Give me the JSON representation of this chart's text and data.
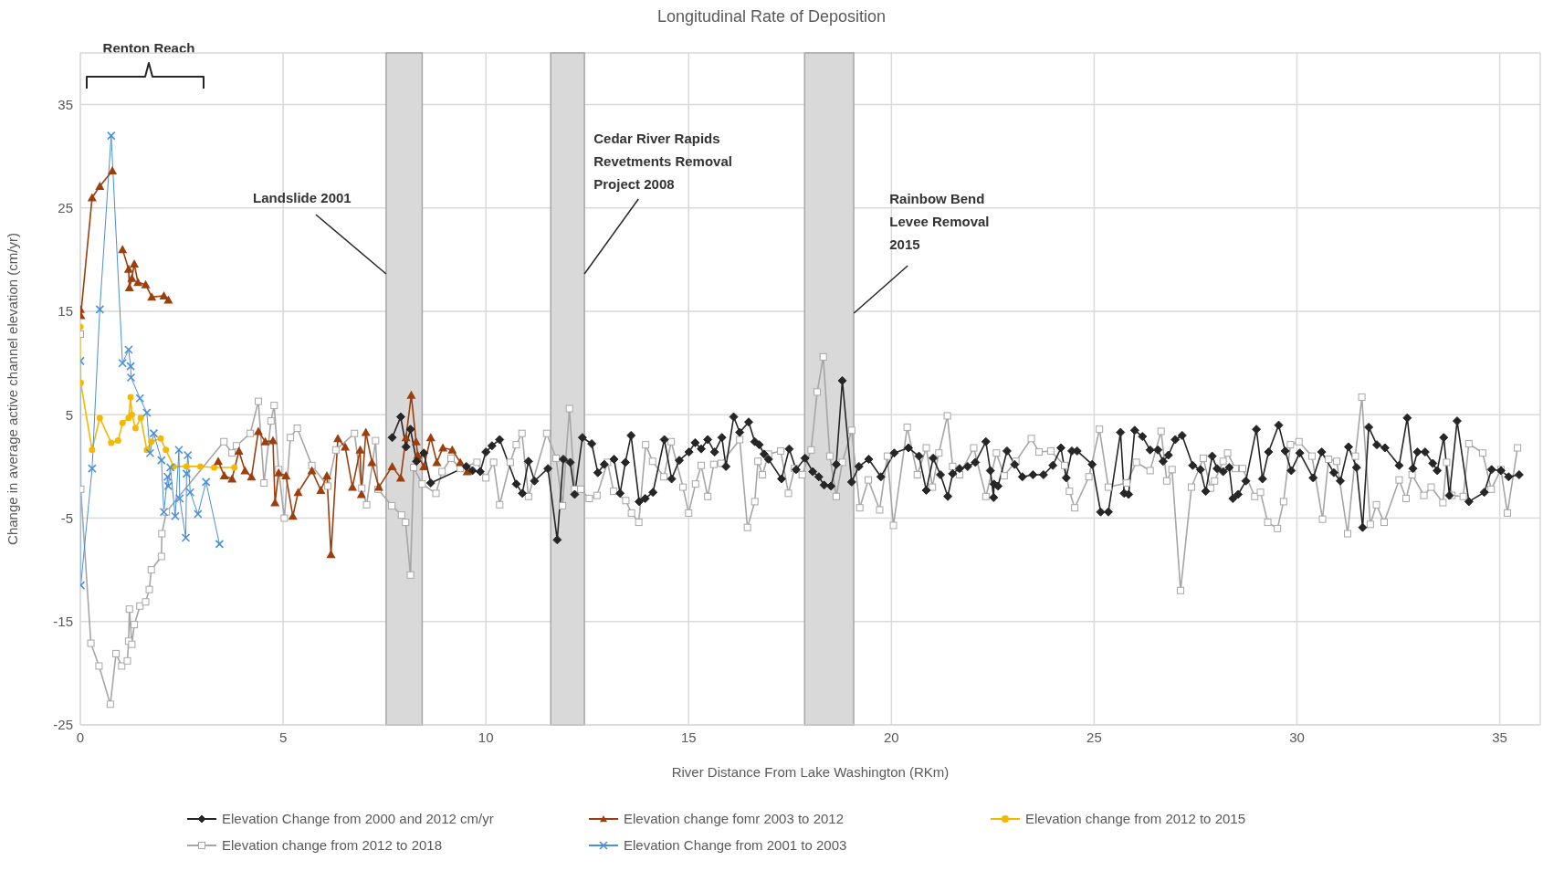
{
  "chart_data": {
    "type": "line",
    "title": "Longitudinal Rate of Deposition",
    "xlabel": "River Distance From Lake Washington (RKm)",
    "ylabel": "Change in average active channel elevation (cm/yr)",
    "xlim": [
      0,
      36
    ],
    "xticks": [
      0,
      5,
      10,
      15,
      20,
      25,
      30,
      35
    ],
    "ylim": [
      -25,
      40
    ],
    "yticks": [
      -25,
      -15,
      -5,
      5,
      15,
      25,
      35
    ],
    "grid": true,
    "legend": "bottom",
    "bands": [
      {
        "axis": "x",
        "from": 7.54,
        "to": 8.43,
        "label": "Landslide 2001",
        "color": "#d9d9d9"
      },
      {
        "axis": "x",
        "from": 11.6,
        "to": 12.43,
        "label": "Cedar River Rapids Revetments Removal Project 2008",
        "color": "#d9d9d9"
      },
      {
        "axis": "x",
        "from": 17.86,
        "to": 19.07,
        "label": "Rainbow Bend Levee Removal 2015",
        "color": "#d9d9d9"
      }
    ],
    "annotations": [
      "Renton Reach"
    ],
    "series": [
      {
        "name": "Elevation Change from 2000 and 2012 cm/yr",
        "color": "#262626",
        "marker": "diamond",
        "x": [
          7.69,
          7.9,
          8.03,
          8.14,
          8.29,
          8.47,
          8.64,
          9.52,
          9.67,
          9.86,
          10.0,
          10.15,
          10.34,
          10.75,
          10.9,
          11.05,
          11.2,
          11.53,
          11.76,
          11.91,
          12.08,
          12.19,
          12.38,
          12.61,
          12.76,
          12.92,
          13.16,
          13.31,
          13.44,
          13.58,
          13.78,
          13.93,
          14.12,
          14.4,
          14.58,
          14.77,
          15.01,
          15.16,
          15.31,
          15.47,
          15.64,
          15.82,
          15.92,
          16.11,
          16.26,
          16.48,
          16.63,
          16.74,
          16.86,
          16.97,
          17.29,
          17.48,
          17.65,
          17.87,
          18.06,
          18.21,
          18.34,
          18.51,
          18.64,
          18.79,
          19.02,
          19.2,
          19.44,
          19.74,
          20.07,
          20.42,
          20.68,
          20.86,
          21.03,
          21.21,
          21.39,
          21.51,
          21.68,
          21.88,
          22.07,
          22.33,
          22.44,
          22.52,
          22.53,
          22.63,
          22.85,
          23.04,
          23.23,
          23.49,
          23.75,
          23.98,
          24.18,
          24.31,
          24.45,
          24.58,
          24.95,
          25.16,
          25.35,
          25.65,
          25.74,
          25.85,
          26.0,
          26.19,
          26.38,
          26.57,
          26.7,
          26.83,
          27.0,
          27.17,
          27.43,
          27.62,
          27.75,
          27.91,
          28.03,
          28.18,
          28.33,
          28.42,
          28.55,
          28.74,
          29.0,
          29.15,
          29.3,
          29.55,
          29.71,
          29.86,
          30.07,
          30.4,
          30.61,
          30.91,
          31.07,
          31.27,
          31.47,
          31.62,
          31.77,
          31.97,
          32.17,
          32.52,
          32.72,
          32.86,
          32.97,
          33.16,
          33.35,
          33.46,
          33.62,
          33.76,
          33.95,
          34.24,
          34.62,
          34.8,
          35.03,
          35.22,
          35.48
        ],
        "values": [
          2.8,
          4.8,
          1.9,
          3.6,
          0.5,
          1.3,
          -1.6,
          0.0,
          -0.4,
          -0.5,
          1.4,
          2.0,
          2.6,
          -1.7,
          -2.6,
          0.5,
          -1.4,
          -0.2,
          -7.1,
          0.7,
          0.4,
          -2.7,
          2.8,
          2.2,
          -0.6,
          0.2,
          0.7,
          -2.6,
          0.4,
          3.0,
          -3.4,
          -3.1,
          -2.5,
          2.6,
          -1.2,
          0.6,
          1.4,
          2.3,
          1.7,
          2.6,
          1.4,
          2.8,
          0.0,
          4.8,
          3.3,
          4.3,
          2.4,
          2.1,
          1.2,
          0.7,
          -1.2,
          1.7,
          -0.3,
          0.8,
          -0.5,
          -1.0,
          -1.8,
          -1.9,
          0.2,
          8.3,
          -1.5,
          0.0,
          0.7,
          -1.0,
          1.3,
          1.8,
          1.0,
          -2.3,
          0.8,
          -0.8,
          -2.9,
          -0.7,
          -0.2,
          0.0,
          0.4,
          2.4,
          -0.4,
          -3.0,
          -1.7,
          -1.9,
          1.5,
          0.2,
          -1.0,
          -0.8,
          -0.8,
          0.1,
          1.8,
          -1.1,
          1.5,
          1.5,
          0.2,
          -4.4,
          -4.4,
          3.3,
          -2.6,
          -2.7,
          3.5,
          2.9,
          1.6,
          1.6,
          0.5,
          1.1,
          2.6,
          3.0,
          0.1,
          -0.3,
          -2.4,
          1.0,
          -0.2,
          -0.5,
          -0.1,
          -3.1,
          -2.7,
          -1.4,
          3.6,
          -1.2,
          1.4,
          4.0,
          1.5,
          -0.4,
          1.3,
          -1.1,
          1.4,
          -0.6,
          -1.4,
          1.9,
          -0.1,
          -5.9,
          3.8,
          2.1,
          1.8,
          0.1,
          4.7,
          -0.2,
          1.4,
          1.4,
          0.3,
          -0.4,
          2.8,
          -2.8,
          4.4,
          -3.4,
          -2.5,
          -0.3,
          -0.4,
          -1.0,
          -0.8
        ]
      },
      {
        "name": "Elevation change fomr 2003 to 2012",
        "color": "#9c3f0e",
        "marker": "triangle",
        "x": [
          0,
          0.01,
          0.29,
          0.48,
          0.79,
          0.9,
          1.04,
          1.19,
          1.21,
          1.27,
          1.33,
          1.42,
          1.61,
          1.76,
          2.06,
          2.17,
          2.8,
          3.4,
          3.55,
          3.74,
          3.91,
          4.06,
          4.22,
          4.39,
          4.56,
          4.75,
          4.8,
          4.89,
          5.07,
          5.24,
          5.37,
          5.71,
          5.93,
          6.08,
          6.18,
          6.35,
          6.53,
          6.71,
          6.9,
          6.93,
          7.04,
          7.19,
          7.36,
          7.69,
          7.9,
          8.03,
          8.16,
          8.28,
          8.32,
          8.47,
          8.64,
          8.79,
          8.94,
          9.17,
          9.37,
          9.54
        ],
        "values": [
          15.2,
          14.6,
          26.0,
          27.1,
          28.6,
          null,
          21.0,
          19.1,
          17.3,
          18.2,
          19.6,
          17.8,
          17.6,
          16.4,
          16.5,
          16.1,
          null,
          0.5,
          -0.9,
          -1.2,
          1.5,
          -0.4,
          -1.0,
          3.4,
          2.4,
          2.5,
          -3.5,
          -0.6,
          -0.9,
          -4.8,
          -2.5,
          -0.4,
          -2.3,
          -0.9,
          -8.5,
          2.7,
          1.9,
          -2.0,
          1.6,
          -2.7,
          3.3,
          0.4,
          -2.0,
          0.0,
          -1.1,
          2.8,
          6.9,
          2.4,
          1.1,
          0.0,
          2.8,
          0.4,
          1.8,
          1.6,
          0.4,
          -0.5
        ]
      },
      {
        "name": "Elevation change from 2012 to 2015",
        "color": "#f5b800",
        "marker": "circle",
        "x": [
          0,
          0.01,
          0.29,
          0.48,
          0.76,
          0.93,
          1.04,
          1.19,
          1.24,
          1.27,
          1.36,
          1.49,
          1.64,
          1.75,
          1.98,
          2.11,
          2.3,
          2.62,
          2.96,
          3.3,
          3.8
        ],
        "values": [
          13.5,
          8.1,
          1.6,
          4.7,
          2.3,
          2.5,
          4.2,
          4.7,
          6.7,
          5.0,
          3.7,
          4.7,
          1.6,
          2.4,
          2.7,
          1.6,
          0.0,
          0.0,
          0.0,
          -0.1,
          -0.1
        ]
      },
      {
        "name": "Elevation change from 2012 to 2018",
        "color": "#a6a6a6",
        "marker": "square",
        "x": [
          0,
          0.01,
          0.26,
          0.46,
          0.74,
          0.88,
          1.02,
          1.16,
          1.19,
          1.21,
          1.27,
          1.33,
          1.47,
          1.61,
          1.7,
          1.75,
          2.0,
          2.01,
          2.12,
          3.54,
          3.74,
          3.85,
          4.19,
          4.39,
          4.53,
          4.7,
          4.78,
          4.89,
          5.03,
          5.18,
          5.35,
          5.71,
          6.1,
          6.3,
          6.76,
          6.94,
          7.06,
          7.28,
          7.34,
          7.68,
          7.92,
          8.02,
          8.14,
          8.22,
          8.43,
          8.77,
          8.92,
          9.14,
          9.37,
          9.78,
          10.0,
          10.19,
          10.34,
          10.6,
          10.75,
          10.89,
          11.05,
          11.5,
          11.73,
          11.89,
          12.06,
          12.19,
          12.34,
          12.55,
          12.74,
          13.0,
          13.15,
          13.45,
          13.59,
          13.77,
          13.94,
          14.11,
          14.39,
          14.57,
          14.86,
          15.0,
          15.17,
          15.31,
          15.47,
          15.62,
          15.8,
          16.26,
          16.45,
          16.63,
          16.71,
          16.82,
          16.97,
          17.27,
          17.46,
          17.61,
          17.8,
          18.02,
          18.17,
          18.32,
          18.48,
          18.64,
          18.79,
          19.02,
          19.22,
          19.43,
          19.71,
          19.9,
          20.05,
          20.39,
          20.64,
          20.86,
          21.01,
          21.17,
          21.38,
          21.51,
          21.68,
          22.03,
          22.33,
          22.59,
          22.78,
          23.07,
          23.45,
          23.64,
          23.93,
          24.27,
          24.39,
          24.52,
          24.87,
          25.13,
          25.35,
          25.8,
          26.04,
          26.38,
          26.65,
          26.79,
          26.92,
          27.13,
          27.4,
          27.69,
          27.87,
          27.97,
          28.18,
          28.29,
          28.48,
          28.66,
          28.96,
          29.1,
          29.28,
          29.52,
          29.67,
          29.84,
          30.05,
          30.37,
          30.63,
          30.78,
          30.98,
          31.25,
          31.44,
          31.6,
          31.81,
          31.96,
          32.15,
          32.52,
          32.69,
          32.84,
          33.13,
          33.31,
          33.6,
          33.69,
          33.82,
          34.1,
          34.24,
          34.58,
          34.79,
          35.03,
          35.19,
          35.44
        ],
        "values": [
          12.8,
          -2.2,
          -17.1,
          -19.3,
          -23.0,
          -18.1,
          -19.3,
          -18.8,
          -16.9,
          -13.8,
          -17.2,
          -15.3,
          -13.5,
          -13.1,
          -11.9,
          -10.0,
          -8.7,
          -6.5,
          -4.4,
          2.4,
          1.3,
          2.0,
          3.2,
          6.3,
          -1.6,
          4.4,
          5.9,
          -0.3,
          -5.0,
          2.8,
          3.7,
          0.1,
          -1.9,
          1.6,
          3.2,
          -2.1,
          -3.7,
          2.5,
          -2.2,
          -3.8,
          -4.7,
          -5.4,
          -10.5,
          -0.1,
          -1.7,
          -2.6,
          -0.5,
          0.8,
          -0.2,
          0.4,
          -1.1,
          0.4,
          -3.7,
          0.4,
          2.1,
          3.2,
          -2.9,
          3.2,
          0.8,
          -3.8,
          5.6,
          -2.2,
          -2.2,
          -3.1,
          -2.8,
          0.4,
          -2.4,
          -3.3,
          -4.5,
          -5.4,
          2.1,
          0.5,
          -1.0,
          2.4,
          -2.0,
          -4.5,
          -1.7,
          0.1,
          -2.9,
          0.2,
          0.3,
          2.6,
          -5.9,
          -3.4,
          0.5,
          -0.8,
          1.2,
          1.5,
          -2.6,
          -0.2,
          -0.8,
          1.6,
          7.2,
          10.6,
          1.0,
          -2.9,
          0.4,
          3.5,
          -4.0,
          -1.3,
          -4.2,
          1.0,
          -5.7,
          3.8,
          -0.8,
          1.8,
          -2.0,
          1.3,
          4.9,
          0.0,
          -0.8,
          1.8,
          -2.9,
          1.3,
          -0.9,
          0.5,
          2.7,
          1.4,
          1.5,
          0.1,
          -2.4,
          -4.0,
          -1.0,
          3.6,
          -2.0,
          -1.6,
          0.4,
          -0.4,
          3.4,
          -1.4,
          -0.3,
          -12.0,
          -2.0,
          0.8,
          -2.1,
          -1.4,
          0.5,
          1.3,
          -0.2,
          -0.2,
          -2.9,
          -2.5,
          -5.4,
          -6.0,
          -3.4,
          2.1,
          2.4,
          1.0,
          -5.1,
          0.7,
          0.5,
          -6.5,
          1.0,
          6.7,
          -5.6,
          -3.7,
          -5.4,
          -1.3,
          -3.1,
          -0.8,
          -2.8,
          -2.0,
          -3.5,
          0.4,
          -2.8,
          -2.9,
          2.2,
          1.3,
          -2.2,
          -0.3,
          -4.5,
          1.8
        ]
      },
      {
        "name": "Elevation Change from 2001 to 2003",
        "color": "#4a8fd8",
        "marker": "cross",
        "x": [
          0,
          0.01,
          0.29,
          0.48,
          0.76,
          1.04,
          1.19,
          1.24,
          1.25,
          1.47,
          1.64,
          1.72,
          1.81,
          2.0,
          2.06,
          2.15,
          2.17,
          2.22,
          2.34,
          2.43,
          2.45,
          2.6,
          2.62,
          2.65,
          2.71,
          2.9,
          3.1,
          3.43
        ],
        "values": [
          10.2,
          -11.5,
          -0.2,
          15.2,
          32.0,
          10.0,
          11.3,
          9.7,
          8.6,
          6.6,
          5.2,
          1.3,
          3.2,
          0.6,
          -4.4,
          -1.0,
          -1.9,
          -0.1,
          -4.8,
          1.6,
          -3.1,
          -6.9,
          -0.7,
          1.1,
          -2.5,
          -4.6,
          -1.5,
          -7.5
        ]
      }
    ]
  }
}
